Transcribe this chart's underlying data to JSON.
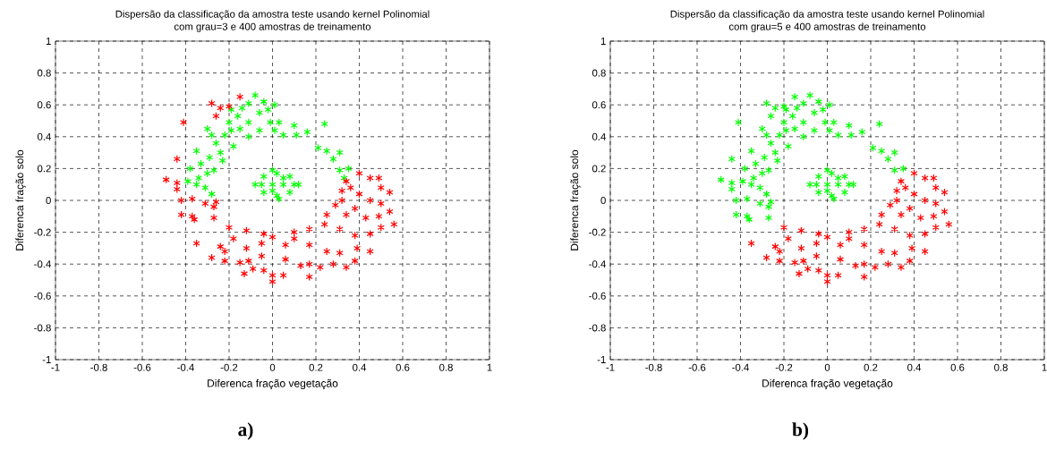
{
  "chart_data": [
    {
      "type": "scatter",
      "title": "Dispersão da classificação da amostra teste usando kernel Polinomial",
      "subtitle": "com grau=3 e 400 amostras de treinamento",
      "xlabel": "Diferenca fração vegetação",
      "ylabel": "Diferenca fração solo",
      "annotations": [
        "a)"
      ],
      "xlim": [
        -1,
        1
      ],
      "ylim": [
        -1,
        1
      ],
      "xticks": [
        -1,
        -0.8,
        -0.6,
        -0.4,
        -0.2,
        0,
        0.2,
        0.4,
        0.6,
        0.8,
        1
      ],
      "yticks": [
        -1,
        -0.8,
        -0.6,
        -0.4,
        -0.2,
        0,
        0.2,
        0.4,
        0.6,
        0.8,
        1
      ],
      "grid": true,
      "marker": "cross",
      "series": [
        {
          "color": "#00ff00",
          "x": [
            -0.3,
            -0.28,
            -0.35,
            -0.38,
            -0.39,
            -0.34,
            -0.31,
            -0.28,
            -0.33,
            -0.29,
            -0.24,
            -0.26,
            -0.22,
            -0.19,
            -0.2,
            -0.16,
            -0.14,
            -0.11,
            -0.08,
            -0.04,
            0.01,
            -0.02,
            -0.06,
            -0.11,
            -0.15,
            -0.11,
            -0.06,
            -0.01,
            0.03,
            0.01,
            0.05,
            0.1,
            0.11,
            0.16,
            0.24,
            0.21,
            0.25,
            0.31,
            0.28,
            0.31,
            0.35,
            0.33,
            -0.18,
            -0.23,
            -0.3,
            -0.35,
            -0.27,
            -0.19,
            0.0,
            0.05,
            -0.05,
            0.1,
            -0.08,
            0.12,
            0.02,
            0.02,
            -0.04,
            0.08,
            -0.04,
            0.08,
            0.0,
            0.03,
            0.0,
            0.05
          ],
          "values": [
            0.45,
            0.41,
            0.31,
            0.2,
            0.12,
            0.14,
            0.08,
            0.04,
            0.23,
            0.27,
            0.3,
            0.36,
            0.41,
            0.44,
            0.49,
            0.53,
            0.58,
            0.61,
            0.66,
            0.62,
            0.6,
            0.57,
            0.55,
            0.49,
            0.45,
            0.4,
            0.44,
            0.49,
            0.49,
            0.44,
            0.41,
            0.47,
            0.41,
            0.43,
            0.48,
            0.33,
            0.31,
            0.3,
            0.26,
            0.19,
            0.2,
            0.14,
            0.34,
            0.25,
            0.17,
            0.1,
            0.19,
            0.57,
            0.1,
            0.1,
            0.1,
            0.1,
            0.1,
            0.1,
            0.17,
            0.03,
            0.15,
            0.15,
            0.05,
            0.05,
            0.19,
            0.01,
            0.06,
            0.14
          ]
        },
        {
          "color": "#ff0000",
          "x": [
            -0.15,
            -0.28,
            -0.24,
            -0.2,
            -0.26,
            -0.41,
            -0.44,
            -0.49,
            -0.44,
            -0.44,
            -0.42,
            -0.37,
            -0.31,
            -0.26,
            -0.27,
            -0.42,
            -0.37,
            -0.36,
            -0.27,
            -0.2,
            -0.12,
            -0.18,
            -0.35,
            -0.24,
            -0.22,
            -0.12,
            -0.28,
            -0.22,
            -0.15,
            -0.11,
            -0.13,
            -0.09,
            -0.05,
            -0.04,
            0.0,
            0.0,
            0.05,
            -0.04,
            -0.05,
            0.0,
            0.06,
            0.06,
            0.13,
            0.17,
            0.17,
            0.22,
            0.28,
            0.34,
            0.38,
            0.31,
            0.25,
            0.17,
            0.1,
            0.17,
            0.24,
            0.29,
            0.34,
            0.31,
            0.38,
            0.45,
            0.45,
            0.39,
            0.5,
            0.56,
            0.54,
            0.49,
            0.43,
            0.38,
            0.45,
            0.5,
            0.54,
            0.5,
            0.49,
            0.45,
            0.4,
            0.34,
            0.32,
            0.36,
            0.4,
            0.32,
            0.25,
            0.1
          ],
          "values": [
            0.65,
            0.61,
            0.58,
            0.59,
            0.53,
            0.49,
            0.26,
            0.13,
            0.11,
            0.07,
            0.0,
            0.01,
            -0.02,
            -0.01,
            -0.04,
            -0.09,
            -0.1,
            -0.12,
            -0.11,
            -0.17,
            -0.19,
            -0.24,
            -0.27,
            -0.29,
            -0.32,
            -0.3,
            -0.36,
            -0.38,
            -0.39,
            -0.38,
            -0.46,
            -0.43,
            -0.35,
            -0.44,
            -0.47,
            -0.51,
            -0.47,
            -0.21,
            -0.27,
            -0.23,
            -0.28,
            -0.37,
            -0.41,
            -0.48,
            -0.4,
            -0.42,
            -0.4,
            -0.42,
            -0.38,
            -0.33,
            -0.32,
            -0.28,
            -0.24,
            -0.18,
            -0.15,
            -0.03,
            -0.09,
            -0.18,
            -0.22,
            -0.21,
            -0.32,
            -0.3,
            -0.17,
            -0.15,
            -0.07,
            -0.1,
            -0.11,
            -0.05,
            0.0,
            -0.02,
            0.05,
            0.08,
            0.14,
            0.14,
            0.17,
            0.12,
            0.06,
            0.08,
            0.04,
            0.0,
            -0.09,
            -0.2
          ]
        }
      ]
    },
    {
      "type": "scatter",
      "title": "Dispersão da classificação da amostra teste usando kernel Polinomial",
      "subtitle": "com grau=5 e 400 amostras de treinamento",
      "xlabel": "Diferenca fração vegetação",
      "ylabel": "Diferenca fração solo",
      "annotations": [
        "b)"
      ],
      "xlim": [
        -1,
        1
      ],
      "ylim": [
        -1,
        1
      ],
      "xticks": [
        -1,
        -0.8,
        -0.6,
        -0.4,
        -0.2,
        0,
        0.2,
        0.4,
        0.6,
        0.8,
        1
      ],
      "yticks": [
        -1,
        -0.8,
        -0.6,
        -0.4,
        -0.2,
        0,
        0.2,
        0.4,
        0.6,
        0.8,
        1
      ],
      "grid": true,
      "marker": "cross",
      "series": [
        {
          "color": "#00ff00",
          "x": [
            -0.3,
            -0.28,
            -0.35,
            -0.38,
            -0.39,
            -0.34,
            -0.31,
            -0.28,
            -0.33,
            -0.29,
            -0.24,
            -0.26,
            -0.22,
            -0.19,
            -0.2,
            -0.16,
            -0.14,
            -0.11,
            -0.08,
            -0.04,
            0.01,
            -0.02,
            -0.06,
            -0.11,
            -0.15,
            -0.11,
            -0.06,
            -0.01,
            0.03,
            0.01,
            0.05,
            0.1,
            0.11,
            0.16,
            0.24,
            0.21,
            0.25,
            0.31,
            0.28,
            0.31,
            0.35,
            -0.18,
            -0.23,
            -0.3,
            -0.35,
            -0.27,
            -0.19,
            0.0,
            0.05,
            -0.05,
            0.1,
            -0.08,
            0.12,
            0.02,
            0.02,
            -0.04,
            0.08,
            -0.04,
            0.08,
            0.0,
            0.03,
            0.0,
            0.05,
            -0.15,
            -0.28,
            -0.24,
            -0.2,
            -0.26,
            -0.41,
            -0.44,
            -0.49,
            -0.44,
            -0.44,
            -0.42,
            -0.37,
            -0.31,
            -0.26,
            -0.27,
            -0.42,
            -0.37,
            -0.36,
            -0.27
          ],
          "values": [
            0.45,
            0.41,
            0.31,
            0.2,
            0.12,
            0.14,
            0.08,
            0.04,
            0.23,
            0.27,
            0.3,
            0.36,
            0.41,
            0.44,
            0.49,
            0.53,
            0.58,
            0.61,
            0.66,
            0.62,
            0.6,
            0.57,
            0.55,
            0.49,
            0.45,
            0.4,
            0.44,
            0.49,
            0.49,
            0.44,
            0.41,
            0.47,
            0.41,
            0.43,
            0.48,
            0.33,
            0.31,
            0.3,
            0.26,
            0.19,
            0.2,
            0.34,
            0.25,
            0.17,
            0.1,
            0.19,
            0.57,
            0.1,
            0.1,
            0.1,
            0.1,
            0.1,
            0.1,
            0.17,
            0.03,
            0.15,
            0.15,
            0.05,
            0.05,
            0.19,
            0.01,
            0.06,
            0.14,
            0.65,
            0.61,
            0.58,
            0.59,
            0.53,
            0.49,
            0.26,
            0.13,
            0.11,
            0.07,
            0.0,
            0.01,
            -0.02,
            -0.01,
            -0.04,
            -0.09,
            -0.1,
            -0.12,
            -0.11
          ]
        },
        {
          "color": "#ff0000",
          "x": [
            -0.2,
            -0.12,
            -0.18,
            -0.35,
            -0.24,
            -0.22,
            -0.12,
            -0.28,
            -0.22,
            -0.15,
            -0.11,
            -0.13,
            -0.09,
            -0.05,
            -0.04,
            0.0,
            0.0,
            0.05,
            -0.04,
            -0.05,
            0.0,
            0.06,
            0.06,
            0.13,
            0.17,
            0.17,
            0.22,
            0.28,
            0.34,
            0.38,
            0.31,
            0.25,
            0.17,
            0.1,
            0.17,
            0.24,
            0.29,
            0.34,
            0.31,
            0.38,
            0.45,
            0.45,
            0.39,
            0.5,
            0.56,
            0.54,
            0.49,
            0.43,
            0.38,
            0.45,
            0.5,
            0.54,
            0.5,
            0.49,
            0.45,
            0.4,
            0.34,
            0.32,
            0.36,
            0.4,
            0.32,
            0.25,
            0.1
          ],
          "values": [
            -0.17,
            -0.19,
            -0.24,
            -0.27,
            -0.29,
            -0.32,
            -0.3,
            -0.36,
            -0.38,
            -0.39,
            -0.38,
            -0.46,
            -0.43,
            -0.35,
            -0.44,
            -0.47,
            -0.51,
            -0.47,
            -0.21,
            -0.27,
            -0.23,
            -0.28,
            -0.37,
            -0.41,
            -0.48,
            -0.4,
            -0.42,
            -0.4,
            -0.42,
            -0.38,
            -0.33,
            -0.32,
            -0.28,
            -0.24,
            -0.18,
            -0.15,
            -0.03,
            -0.09,
            -0.18,
            -0.22,
            -0.21,
            -0.32,
            -0.3,
            -0.17,
            -0.15,
            -0.07,
            -0.1,
            -0.11,
            -0.05,
            0.0,
            -0.02,
            0.05,
            0.08,
            0.14,
            0.14,
            0.17,
            0.12,
            0.06,
            0.08,
            0.04,
            0.0,
            -0.09,
            -0.2
          ]
        }
      ]
    }
  ]
}
